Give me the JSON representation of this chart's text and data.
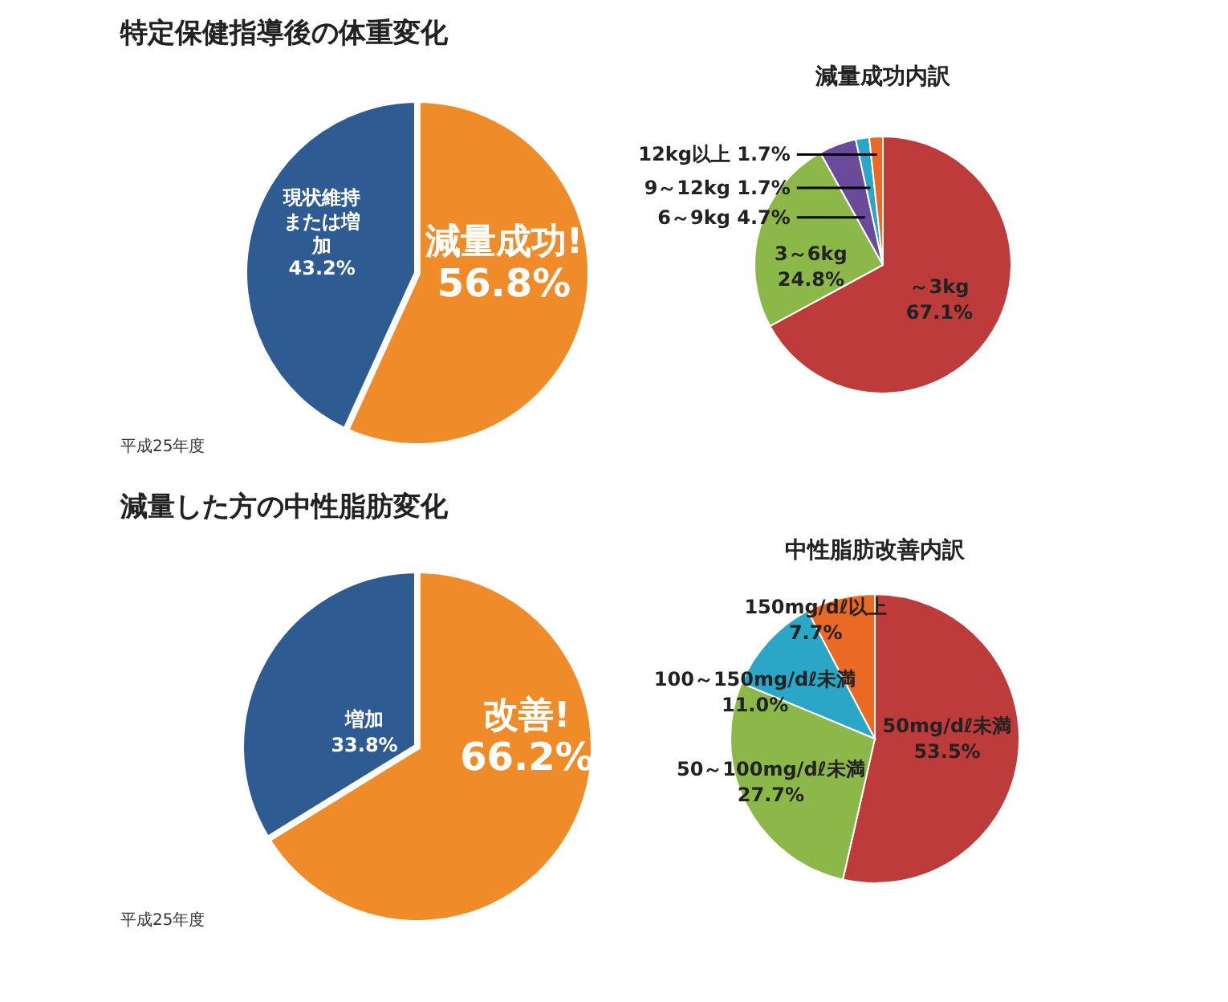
{
  "chart_data": [
    {
      "type": "pie",
      "title": "特定保健指導後の体重変化",
      "categories": [
        "減量成功!",
        "現状維持または増加"
      ],
      "values": [
        56.8,
        43.2
      ],
      "value_labels": [
        "56.8%",
        "43.2%"
      ],
      "colors": [
        "#f08b2a",
        "#2d5b92"
      ],
      "annotations": [
        "平成25年度"
      ]
    },
    {
      "type": "pie",
      "title": "減量成功内訳",
      "categories": [
        "～3kg",
        "3～6kg",
        "6～9kg",
        "9～12kg",
        "12kg以上"
      ],
      "values": [
        67.1,
        24.8,
        4.7,
        1.7,
        1.7
      ],
      "value_labels": [
        "67.1%",
        "24.8%",
        "4.7%",
        "1.7%",
        "1.7%"
      ],
      "colors": [
        "#bd3b3b",
        "#8cb84a",
        "#6a4a9b",
        "#2aa6c6",
        "#ea6a25"
      ]
    },
    {
      "type": "pie",
      "title": "減量した方の中性脂肪変化",
      "categories": [
        "改善!",
        "増加"
      ],
      "values": [
        66.2,
        33.8
      ],
      "value_labels": [
        "66.2%",
        "33.8%"
      ],
      "colors": [
        "#f08b2a",
        "#2d5b92"
      ],
      "annotations": [
        "平成25年度"
      ]
    },
    {
      "type": "pie",
      "title": "中性脂肪改善内訳",
      "categories": [
        "50mg/dℓ未満",
        "50～100mg/dℓ未満",
        "100～150mg/dℓ未満",
        "150mg/dℓ以上"
      ],
      "values": [
        53.5,
        27.7,
        11.0,
        7.7
      ],
      "value_labels": [
        "53.5%",
        "27.7%",
        "11.0%",
        "7.7%"
      ],
      "colors": [
        "#bd3b3b",
        "#8cb84a",
        "#2aa6c6",
        "#ea6a25"
      ]
    }
  ]
}
